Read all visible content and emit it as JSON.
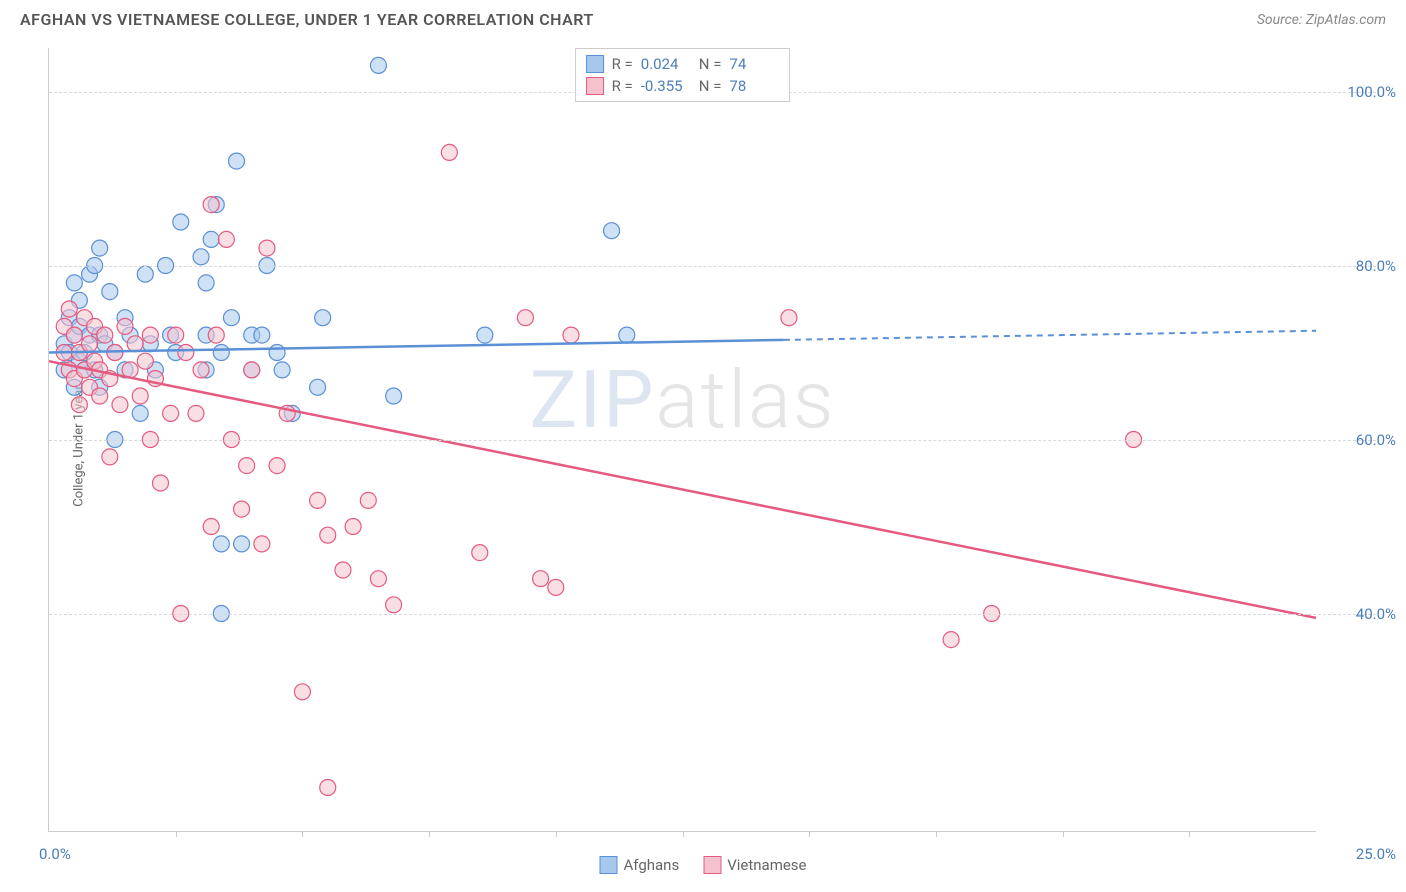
{
  "header": {
    "title": "AFGHAN VS VIETNAMESE COLLEGE, UNDER 1 YEAR CORRELATION CHART",
    "source": "Source: ZipAtlas.com"
  },
  "watermark": {
    "prefix": "ZIP",
    "suffix": "atlas"
  },
  "chart": {
    "type": "scatter",
    "ylabel": "College, Under 1 year",
    "xlim": [
      0,
      25
    ],
    "ylim": [
      15,
      105
    ],
    "xlabel_min": "0.0%",
    "xlabel_max": "25.0%",
    "yticks": [
      {
        "v": 40,
        "label": "40.0%"
      },
      {
        "v": 60,
        "label": "60.0%"
      },
      {
        "v": 80,
        "label": "80.0%"
      },
      {
        "v": 100,
        "label": "100.0%"
      }
    ],
    "xticks": [
      2.5,
      5,
      7.5,
      10,
      12.5,
      15,
      17.5,
      20,
      22.5
    ],
    "marker_radius": 8,
    "marker_opacity": 0.55,
    "background_color": "#ffffff",
    "grid_color": "#d8d8d8",
    "axis_color": "#cccccc",
    "tick_label_color": "#4a7ebb",
    "series": [
      {
        "name": "Afghans",
        "fill": "#a6c8ec",
        "stroke": "#5b8fd6",
        "trend": {
          "y_at_xmin": 70.0,
          "y_at_xmax": 72.5,
          "solid_until_x": 14.5
        },
        "r_label": "R =",
        "r_value": "0.024",
        "n_label": "N =",
        "n_value": "74",
        "points": [
          [
            0.3,
            71
          ],
          [
            0.3,
            68
          ],
          [
            0.4,
            74
          ],
          [
            0.4,
            70
          ],
          [
            0.5,
            78
          ],
          [
            0.5,
            72
          ],
          [
            0.5,
            66
          ],
          [
            0.6,
            69
          ],
          [
            0.6,
            73
          ],
          [
            0.6,
            76
          ],
          [
            0.7,
            70
          ],
          [
            0.7,
            68
          ],
          [
            0.8,
            79
          ],
          [
            0.8,
            72
          ],
          [
            0.9,
            80
          ],
          [
            0.9,
            68
          ],
          [
            1.0,
            82
          ],
          [
            1.0,
            72
          ],
          [
            1.0,
            66
          ],
          [
            1.1,
            71
          ],
          [
            1.2,
            77
          ],
          [
            1.3,
            70
          ],
          [
            1.3,
            60
          ],
          [
            1.5,
            74
          ],
          [
            1.5,
            68
          ],
          [
            1.6,
            72
          ],
          [
            1.8,
            63
          ],
          [
            1.9,
            79
          ],
          [
            2.0,
            71
          ],
          [
            2.1,
            68
          ],
          [
            2.3,
            80
          ],
          [
            2.4,
            72
          ],
          [
            2.5,
            70
          ],
          [
            2.6,
            85
          ],
          [
            3.0,
            81
          ],
          [
            3.1,
            78
          ],
          [
            3.1,
            72
          ],
          [
            3.1,
            68
          ],
          [
            3.2,
            83
          ],
          [
            3.3,
            87
          ],
          [
            3.4,
            70
          ],
          [
            3.4,
            48
          ],
          [
            3.4,
            40
          ],
          [
            3.6,
            74
          ],
          [
            3.7,
            92
          ],
          [
            3.8,
            48
          ],
          [
            4.0,
            68
          ],
          [
            4.0,
            72
          ],
          [
            4.2,
            72
          ],
          [
            4.3,
            80
          ],
          [
            4.5,
            70
          ],
          [
            4.6,
            68
          ],
          [
            4.8,
            63
          ],
          [
            5.3,
            66
          ],
          [
            5.4,
            74
          ],
          [
            6.5,
            103
          ],
          [
            6.8,
            65
          ],
          [
            8.6,
            72
          ],
          [
            11.1,
            84
          ],
          [
            11.4,
            72
          ]
        ]
      },
      {
        "name": "Vietnamese",
        "fill": "#f4c2cd",
        "stroke": "#e65a7f",
        "trend": {
          "y_at_xmin": 69.0,
          "y_at_xmax": 39.5,
          "solid_until_x": 25
        },
        "r_label": "R =",
        "r_value": "-0.355",
        "n_label": "N =",
        "n_value": "78",
        "points": [
          [
            0.3,
            73
          ],
          [
            0.3,
            70
          ],
          [
            0.4,
            75
          ],
          [
            0.4,
            68
          ],
          [
            0.5,
            72
          ],
          [
            0.5,
            67
          ],
          [
            0.6,
            70
          ],
          [
            0.6,
            64
          ],
          [
            0.7,
            74
          ],
          [
            0.7,
            68
          ],
          [
            0.8,
            71
          ],
          [
            0.8,
            66
          ],
          [
            0.9,
            73
          ],
          [
            0.9,
            69
          ],
          [
            1.0,
            68
          ],
          [
            1.0,
            65
          ],
          [
            1.1,
            72
          ],
          [
            1.2,
            67
          ],
          [
            1.2,
            58
          ],
          [
            1.3,
            70
          ],
          [
            1.4,
            64
          ],
          [
            1.5,
            73
          ],
          [
            1.6,
            68
          ],
          [
            1.7,
            71
          ],
          [
            1.8,
            65
          ],
          [
            1.9,
            69
          ],
          [
            2.0,
            72
          ],
          [
            2.0,
            60
          ],
          [
            2.1,
            67
          ],
          [
            2.2,
            55
          ],
          [
            2.4,
            63
          ],
          [
            2.5,
            72
          ],
          [
            2.6,
            40
          ],
          [
            2.7,
            70
          ],
          [
            2.9,
            63
          ],
          [
            3.0,
            68
          ],
          [
            3.2,
            50
          ],
          [
            3.2,
            87
          ],
          [
            3.3,
            72
          ],
          [
            3.5,
            83
          ],
          [
            3.6,
            60
          ],
          [
            3.8,
            52
          ],
          [
            3.9,
            57
          ],
          [
            4.0,
            68
          ],
          [
            4.2,
            48
          ],
          [
            4.3,
            82
          ],
          [
            4.5,
            57
          ],
          [
            4.7,
            63
          ],
          [
            5.0,
            31
          ],
          [
            5.3,
            53
          ],
          [
            5.5,
            49
          ],
          [
            5.5,
            20
          ],
          [
            5.8,
            45
          ],
          [
            6.0,
            50
          ],
          [
            6.3,
            53
          ],
          [
            6.5,
            44
          ],
          [
            6.8,
            41
          ],
          [
            7.9,
            93
          ],
          [
            8.5,
            47
          ],
          [
            9.4,
            74
          ],
          [
            9.7,
            44
          ],
          [
            10.0,
            43
          ],
          [
            10.3,
            72
          ],
          [
            14.6,
            74
          ],
          [
            17.8,
            37
          ],
          [
            18.6,
            40
          ],
          [
            21.4,
            60
          ]
        ]
      }
    ]
  },
  "legend_bottom": {
    "items": [
      "Afghans",
      "Vietnamese"
    ]
  }
}
